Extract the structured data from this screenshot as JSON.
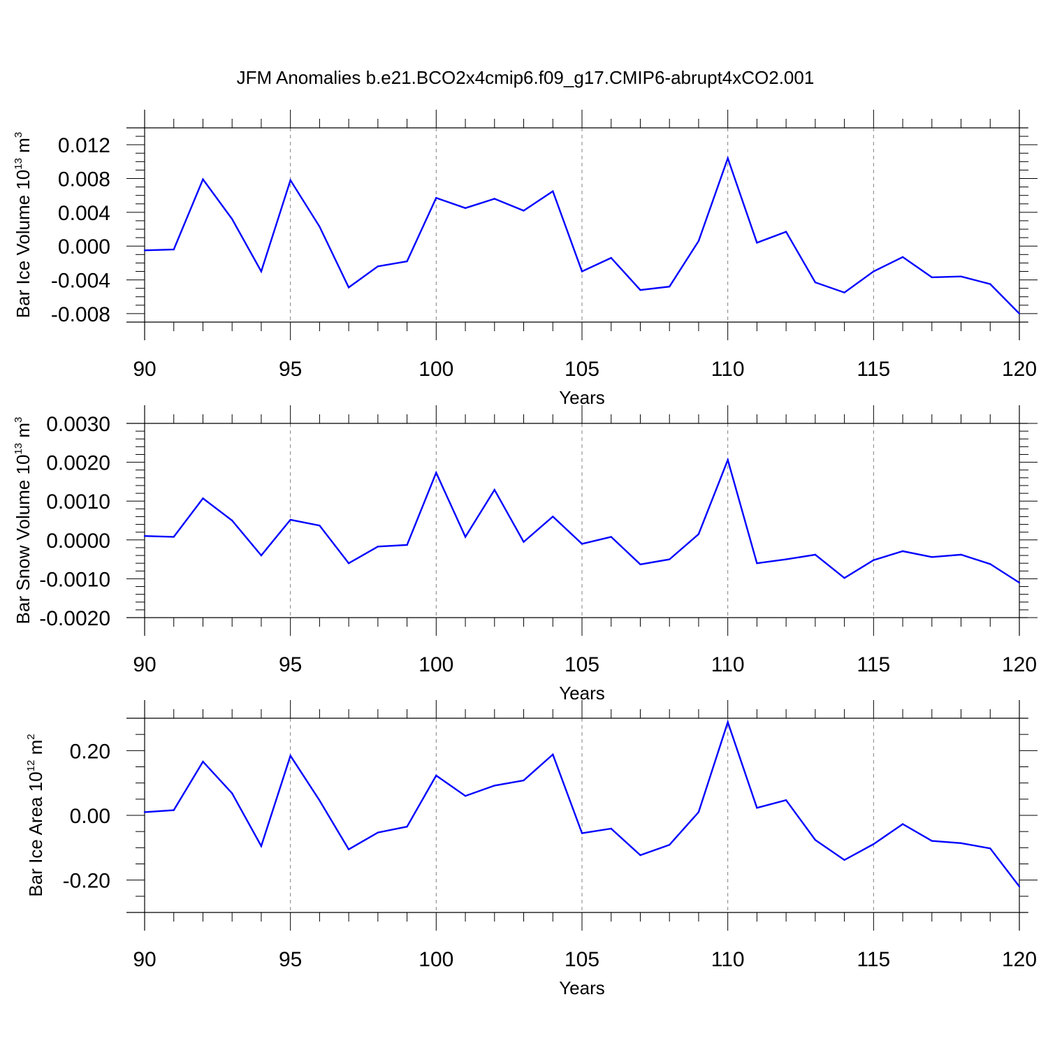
{
  "title": "JFM Anomalies b.e21.BCO2x4cmip6.f09_g17.CMIP6-abrupt4xCO2.001",
  "colors": {
    "line": "#0000ff",
    "axis": "#000000",
    "grid": "#808080"
  },
  "chart_data": [
    {
      "type": "line",
      "xlabel": "Years",
      "ylabel": {
        "text": "Bar Ice Volume 10",
        "sup": "13",
        "unit": " m",
        "unit_sup": "3"
      },
      "xlim": [
        90,
        120
      ],
      "ylim": [
        -0.009,
        0.014
      ],
      "xticks": [
        90,
        95,
        100,
        105,
        110,
        115,
        120
      ],
      "xtick_labels": [
        "90",
        "95",
        "100",
        "105",
        "110",
        "115",
        "120"
      ],
      "yticks": [
        0.012,
        0.008,
        0.004,
        0.0,
        -0.004,
        -0.008
      ],
      "ytick_labels": [
        "0.012",
        "0.008",
        "0.004",
        "0.000",
        "-0.004",
        "-0.008"
      ],
      "yminor": 0.001,
      "grid": "vertical-dashed",
      "x": [
        90,
        91,
        92,
        93,
        94,
        95,
        96,
        97,
        98,
        99,
        100,
        101,
        102,
        103,
        104,
        105,
        106,
        107,
        108,
        109,
        110,
        111,
        112,
        113,
        114,
        115,
        116,
        117,
        118,
        119,
        120
      ],
      "values": [
        -0.0005,
        -0.0004,
        0.0079,
        0.0032,
        -0.003,
        0.0078,
        0.0023,
        -0.0049,
        -0.0024,
        -0.0018,
        0.0057,
        0.0045,
        0.0056,
        0.0042,
        0.0065,
        -0.003,
        -0.0014,
        -0.0052,
        -0.0048,
        0.0006,
        0.0104,
        0.0004,
        0.0017,
        -0.0043,
        -0.0055,
        -0.003,
        -0.0013,
        -0.0037,
        -0.0036,
        -0.0045,
        -0.008
      ]
    },
    {
      "type": "line",
      "xlabel": "Years",
      "ylabel": {
        "text": "Bar Snow Volume 10",
        "sup": "13",
        "unit": " m",
        "unit_sup": "3"
      },
      "xlim": [
        90,
        120
      ],
      "ylim": [
        -0.002,
        0.003
      ],
      "xticks": [
        90,
        95,
        100,
        105,
        110,
        115,
        120
      ],
      "xtick_labels": [
        "90",
        "95",
        "100",
        "105",
        "110",
        "115",
        "120"
      ],
      "yticks": [
        0.003,
        0.002,
        0.001,
        0.0,
        -0.001,
        -0.002
      ],
      "ytick_labels": [
        "0.0030",
        "0.0020",
        "0.0010",
        "0.0000",
        "-0.0010",
        "-0.0020"
      ],
      "yminor": 0.0002,
      "grid": "vertical-dashed",
      "x": [
        90,
        91,
        92,
        93,
        94,
        95,
        96,
        97,
        98,
        99,
        100,
        101,
        102,
        103,
        104,
        105,
        106,
        107,
        108,
        109,
        110,
        111,
        112,
        113,
        114,
        115,
        116,
        117,
        118,
        119,
        120
      ],
      "values": [
        0.0001,
        8e-05,
        0.00107,
        0.0005,
        -0.0004,
        0.00052,
        0.00037,
        -0.0006,
        -0.00017,
        -0.00013,
        0.00173,
        8e-05,
        0.00129,
        -5e-05,
        0.0006,
        -0.0001,
        8e-05,
        -0.00063,
        -0.0005,
        0.00015,
        0.00206,
        -0.0006,
        -0.0005,
        -0.00038,
        -0.00098,
        -0.00052,
        -0.00029,
        -0.00044,
        -0.00038,
        -0.00062,
        -0.0011
      ]
    },
    {
      "type": "line",
      "xlabel": "Years",
      "ylabel": {
        "text": "Bar Ice Area 10",
        "sup": "12",
        "unit": " m",
        "unit_sup": "2"
      },
      "xlim": [
        90,
        120
      ],
      "ylim": [
        -0.3,
        0.3
      ],
      "xticks": [
        90,
        95,
        100,
        105,
        110,
        115,
        120
      ],
      "xtick_labels": [
        "90",
        "95",
        "100",
        "105",
        "110",
        "115",
        "120"
      ],
      "yticks": [
        0.2,
        0.0,
        -0.2
      ],
      "ytick_labels": [
        "0.20",
        "0.00",
        "-0.20"
      ],
      "yminor": 0.05,
      "grid": "vertical-dashed",
      "x": [
        90,
        91,
        92,
        93,
        94,
        95,
        96,
        97,
        98,
        99,
        100,
        101,
        102,
        103,
        104,
        105,
        106,
        107,
        108,
        109,
        110,
        111,
        112,
        113,
        114,
        115,
        116,
        117,
        118,
        119,
        120
      ],
      "values": [
        0.01,
        0.016,
        0.166,
        0.068,
        -0.095,
        0.184,
        0.046,
        -0.105,
        -0.053,
        -0.035,
        0.123,
        0.06,
        0.092,
        0.108,
        0.188,
        -0.055,
        -0.041,
        -0.123,
        -0.091,
        0.01,
        0.288,
        0.023,
        0.047,
        -0.076,
        -0.138,
        -0.089,
        -0.027,
        -0.079,
        -0.086,
        -0.102,
        -0.22
      ]
    }
  ]
}
